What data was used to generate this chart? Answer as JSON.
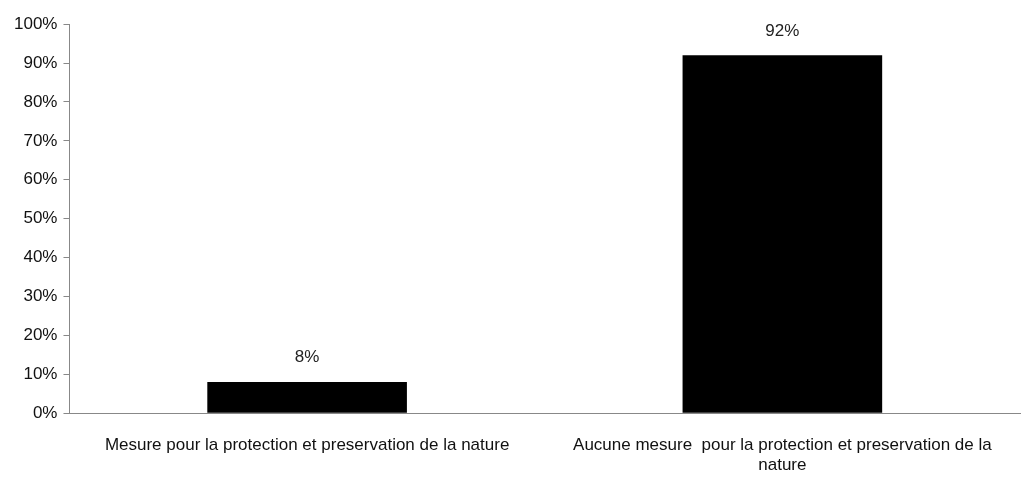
{
  "chart_data": {
    "type": "bar",
    "categories": [
      "Mesure pour la protection et preservation de la nature",
      "Aucune mesure  pour la protection et preservation de la nature"
    ],
    "values": [
      8,
      92
    ],
    "color": "#000000",
    "value_labels": [
      "8%",
      "92%"
    ],
    "ylim": [
      0,
      100
    ],
    "yticks": [
      {
        "value": 0,
        "label": "0%"
      },
      {
        "value": 10,
        "label": "10%"
      },
      {
        "value": 20,
        "label": "20%"
      },
      {
        "value": 30,
        "label": "30%"
      },
      {
        "value": 40,
        "label": "40%"
      },
      {
        "value": 50,
        "label": "50%"
      },
      {
        "value": 60,
        "label": "60%"
      },
      {
        "value": 70,
        "label": "70%"
      },
      {
        "value": 80,
        "label": "80%"
      },
      {
        "value": 90,
        "label": "90%"
      },
      {
        "value": 100,
        "label": "100%"
      }
    ],
    "grid": false,
    "legend": false
  }
}
